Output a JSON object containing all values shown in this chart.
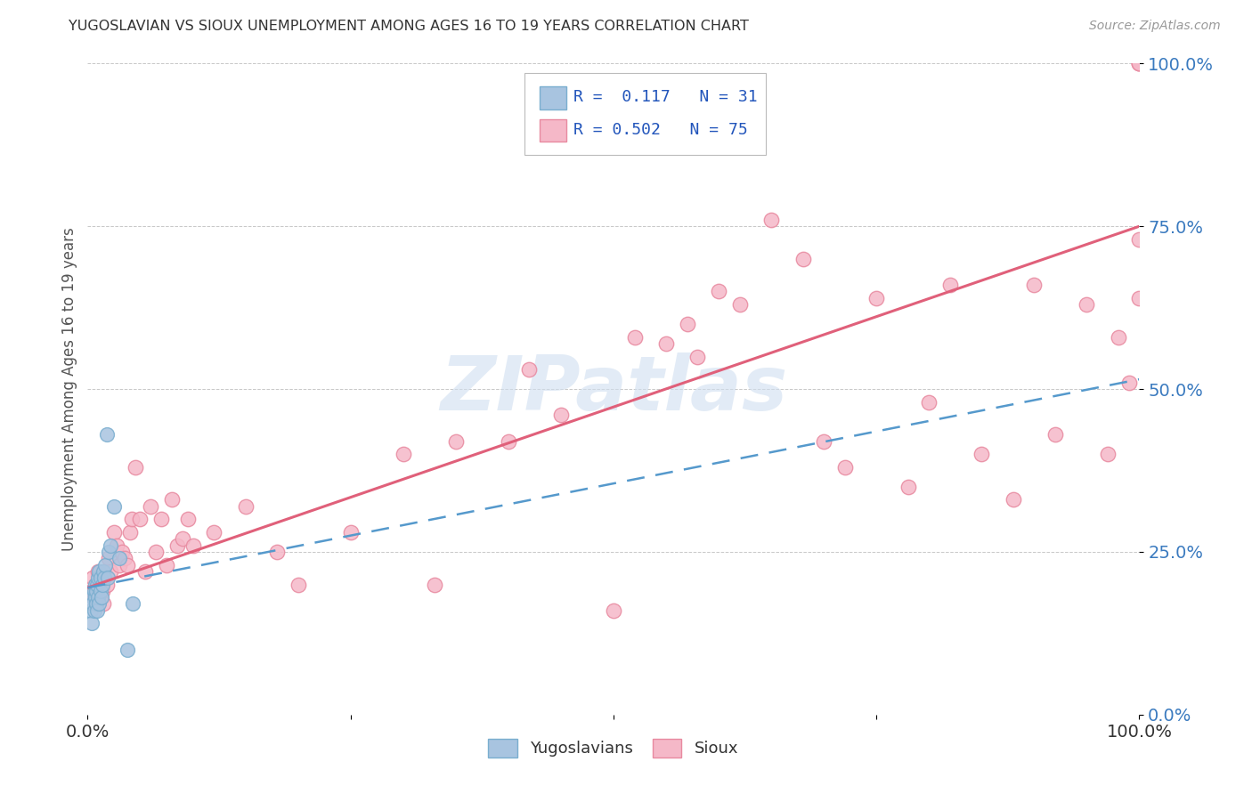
{
  "title": "YUGOSLAVIAN VS SIOUX UNEMPLOYMENT AMONG AGES 16 TO 19 YEARS CORRELATION CHART",
  "source": "Source: ZipAtlas.com",
  "ylabel": "Unemployment Among Ages 16 to 19 years",
  "ytick_labels": [
    "0.0%",
    "25.0%",
    "50.0%",
    "75.0%",
    "100.0%"
  ],
  "ytick_values": [
    0.0,
    0.25,
    0.5,
    0.75,
    1.0
  ],
  "legend_yugoslavians_label": "Yugoslavians",
  "legend_sioux_label": "Sioux",
  "yugo_color": "#a8c4e0",
  "yugo_edge_color": "#7aaecf",
  "yugo_line_color": "#5599cc",
  "sioux_color": "#f5b8c8",
  "sioux_edge_color": "#e88aa0",
  "sioux_line_color": "#e0607a",
  "background_color": "#ffffff",
  "watermark_text": "ZIPatlas",
  "watermark_color": "#d0dff0",
  "xlim": [
    0.0,
    1.0
  ],
  "ylim": [
    0.0,
    1.0
  ],
  "yugo_scatter_x": [
    0.003,
    0.004,
    0.005,
    0.005,
    0.006,
    0.006,
    0.007,
    0.007,
    0.008,
    0.008,
    0.009,
    0.009,
    0.01,
    0.01,
    0.011,
    0.011,
    0.012,
    0.012,
    0.013,
    0.014,
    0.015,
    0.016,
    0.017,
    0.018,
    0.019,
    0.02,
    0.022,
    0.025,
    0.03,
    0.038,
    0.043
  ],
  "yugo_scatter_y": [
    0.16,
    0.14,
    0.18,
    0.17,
    0.19,
    0.16,
    0.18,
    0.2,
    0.17,
    0.19,
    0.16,
    0.2,
    0.18,
    0.21,
    0.17,
    0.22,
    0.19,
    0.21,
    0.18,
    0.2,
    0.22,
    0.21,
    0.23,
    0.43,
    0.21,
    0.25,
    0.26,
    0.32,
    0.24,
    0.1,
    0.17
  ],
  "sioux_scatter_x": [
    0.004,
    0.005,
    0.006,
    0.007,
    0.008,
    0.009,
    0.01,
    0.011,
    0.012,
    0.013,
    0.014,
    0.015,
    0.016,
    0.018,
    0.02,
    0.022,
    0.025,
    0.028,
    0.03,
    0.033,
    0.035,
    0.038,
    0.04,
    0.042,
    0.045,
    0.05,
    0.055,
    0.06,
    0.065,
    0.07,
    0.075,
    0.08,
    0.085,
    0.09,
    0.095,
    0.1,
    0.12,
    0.15,
    0.18,
    0.2,
    0.25,
    0.3,
    0.35,
    0.4,
    0.45,
    0.5,
    0.52,
    0.55,
    0.58,
    0.6,
    0.62,
    0.65,
    0.68,
    0.7,
    0.72,
    0.75,
    0.78,
    0.8,
    0.82,
    0.85,
    0.88,
    0.9,
    0.92,
    0.95,
    0.97,
    0.98,
    0.99,
    1.0,
    1.0,
    1.0,
    1.0,
    1.0,
    0.33,
    0.42,
    0.57
  ],
  "sioux_scatter_y": [
    0.19,
    0.21,
    0.18,
    0.2,
    0.17,
    0.19,
    0.22,
    0.2,
    0.18,
    0.21,
    0.19,
    0.17,
    0.22,
    0.2,
    0.24,
    0.22,
    0.28,
    0.26,
    0.23,
    0.25,
    0.24,
    0.23,
    0.28,
    0.3,
    0.38,
    0.3,
    0.22,
    0.32,
    0.25,
    0.3,
    0.23,
    0.33,
    0.26,
    0.27,
    0.3,
    0.26,
    0.28,
    0.32,
    0.25,
    0.2,
    0.28,
    0.4,
    0.42,
    0.42,
    0.46,
    0.16,
    0.58,
    0.57,
    0.55,
    0.65,
    0.63,
    0.76,
    0.7,
    0.42,
    0.38,
    0.64,
    0.35,
    0.48,
    0.66,
    0.4,
    0.33,
    0.66,
    0.43,
    0.63,
    0.4,
    0.58,
    0.51,
    0.73,
    0.64,
    1.0,
    1.0,
    1.0,
    0.2,
    0.53,
    0.6
  ],
  "sioux_line_intercept": 0.195,
  "sioux_line_slope": 0.555,
  "yugo_line_intercept": 0.195,
  "yugo_line_slope": 0.32
}
